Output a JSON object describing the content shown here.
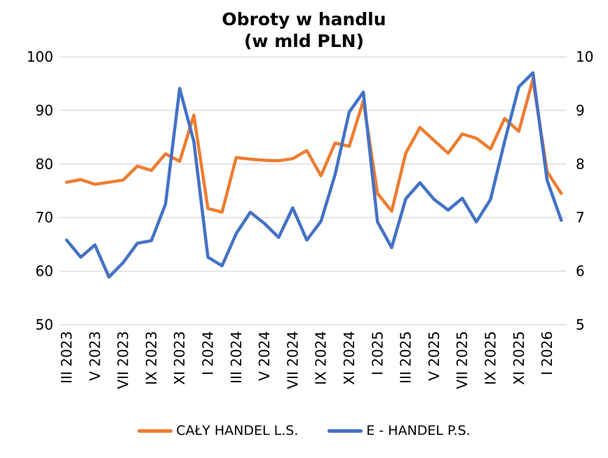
{
  "title": {
    "line1": "Obroty w handlu",
    "line2": "(w mld PLN)"
  },
  "chart_data": {
    "type": "line",
    "title": "Obroty w handlu (w mld PLN)",
    "categories": [
      "III 2023",
      "IV 2023",
      "V 2023",
      "VI 2023",
      "VII 2023",
      "VIII 2023",
      "IX 2023",
      "X 2023",
      "XI 2023",
      "XII 2023",
      "I 2024",
      "II 2024",
      "III 2024",
      "IV 2024",
      "V 2024",
      "VI 2024",
      "VII 2024",
      "VIII 2024",
      "IX 2024",
      "X 2024",
      "XI 2024",
      "XII 2024",
      "I 2025",
      "II 2025",
      "III 2025",
      "IV 2025",
      "V 2025",
      "VI 2025",
      "VII 2025",
      "VIII 2025",
      "IX 2025",
      "X 2025",
      "XI 2025",
      "XII 2025",
      "I 2026",
      "II 2026"
    ],
    "x_tick_label_every": 2,
    "left_axis": {
      "min": 50,
      "max": 100,
      "ticks": [
        100,
        90,
        80,
        70,
        60,
        50
      ]
    },
    "right_axis": {
      "min": 5,
      "max": 10,
      "ticks": [
        10,
        9,
        8,
        7,
        6,
        5
      ]
    },
    "grid": true,
    "legend_position": "bottom",
    "series": [
      {
        "name": "CAŁY HANDEL L.S.",
        "axis": "left",
        "color": "#ED7D31",
        "values": [
          76.6,
          77.1,
          76.2,
          76.6,
          77.0,
          79.6,
          78.8,
          81.9,
          80.5,
          89.1,
          71.7,
          71.0,
          81.2,
          80.9,
          80.7,
          80.6,
          81.0,
          82.5,
          77.8,
          83.9,
          83.3,
          91.8,
          74.5,
          71.2,
          82.0,
          86.8,
          84.4,
          82.0,
          85.6,
          84.8,
          82.8,
          88.5,
          86.1,
          95.8,
          78.6,
          74.5
        ]
      },
      {
        "name": "E - HANDEL P.S.",
        "axis": "right",
        "color": "#4472C4",
        "values": [
          6.58,
          6.26,
          6.49,
          5.89,
          6.16,
          6.52,
          6.57,
          7.25,
          9.41,
          8.42,
          6.26,
          6.1,
          6.7,
          7.1,
          6.89,
          6.63,
          7.18,
          6.58,
          6.93,
          7.8,
          8.97,
          9.34,
          6.92,
          6.44,
          7.35,
          7.65,
          7.34,
          7.14,
          7.36,
          6.92,
          7.34,
          8.42,
          9.44,
          9.7,
          7.7,
          6.95
        ]
      }
    ],
    "colors": {
      "gridline": "#D9D9D9",
      "text": "#000000"
    }
  }
}
